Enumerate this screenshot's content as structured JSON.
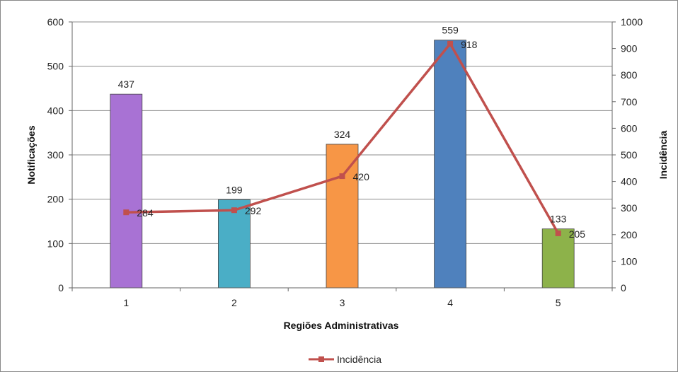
{
  "chart_data": {
    "type": "bar",
    "categories": [
      "1",
      "2",
      "3",
      "4",
      "5"
    ],
    "bars": {
      "values": [
        437,
        199,
        324,
        559,
        133
      ],
      "colors": [
        "#a872d4",
        "#4aaec6",
        "#f79646",
        "#4f81bd",
        "#8db24a"
      ],
      "axis": "left"
    },
    "line": {
      "name": "Incidência",
      "values": [
        284,
        292,
        420,
        918,
        205
      ],
      "color": "#c0504d",
      "axis": "right"
    },
    "xlabel": "Regiões Administrativas",
    "ylabel": "Notificações",
    "y2label": "Incidência",
    "ylim": [
      0,
      600
    ],
    "yticks": [
      0,
      100,
      200,
      300,
      400,
      500,
      600
    ],
    "y2lim": [
      0,
      1000
    ],
    "y2ticks": [
      0,
      100,
      200,
      300,
      400,
      500,
      600,
      700,
      800,
      900,
      1000
    ],
    "grid": true,
    "legend_position": "bottom"
  }
}
